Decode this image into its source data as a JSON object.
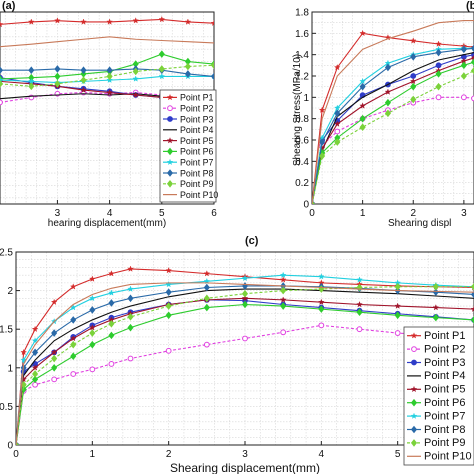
{
  "chart_data": [
    {
      "type": "line",
      "panel_label": "(a)",
      "xlabel": "hearing displacement(mm)",
      "ylabel": "",
      "xlim": [
        1.9,
        6
      ],
      "ylim": [
        0.55,
        2.1
      ],
      "x_ticks": [
        3,
        4,
        5,
        6
      ],
      "grid": true,
      "legend_position": "bottom-right",
      "series": [
        {
          "name": "Point P1",
          "color": "#d42b2b",
          "marker": "star",
          "x": [
            1.9,
            2.5,
            3,
            3.5,
            4,
            4.5,
            5,
            5.5,
            6
          ],
          "y": [
            2.0,
            2.02,
            2.03,
            2.02,
            2.02,
            2.03,
            2.04,
            2.02,
            2.01
          ]
        },
        {
          "name": "Point P2",
          "color": "#e040e0",
          "marker": "circle-open",
          "x": [
            1.9,
            2.5,
            3,
            3.5,
            4,
            4.5,
            5,
            5.5,
            6
          ],
          "y": [
            1.37,
            1.41,
            1.44,
            1.45,
            1.44,
            1.45,
            1.43,
            1.42,
            1.4
          ]
        },
        {
          "name": "Point P3",
          "color": "#2f3cc8",
          "marker": "circle",
          "x": [
            1.9,
            2.5,
            3,
            3.5,
            4,
            4.5,
            5,
            5.5,
            6
          ],
          "y": [
            1.57,
            1.53,
            1.5,
            1.48,
            1.46,
            1.43,
            1.41,
            1.38,
            1.35
          ]
        },
        {
          "name": "Point P4",
          "color": "#111111",
          "marker": "none",
          "x": [
            1.9,
            2.5,
            3,
            3.5,
            4,
            4.5,
            5,
            5.5,
            6
          ],
          "y": [
            1.4,
            1.42,
            1.43,
            1.44,
            1.43,
            1.44,
            1.42,
            1.4,
            1.38
          ]
        },
        {
          "name": "Point P5",
          "color": "#a0132a",
          "marker": "star",
          "x": [
            1.9,
            2.5,
            3,
            3.5,
            4,
            4.5,
            5,
            5.5,
            6
          ],
          "y": [
            1.54,
            1.52,
            1.5,
            1.47,
            1.45,
            1.43,
            1.41,
            1.4,
            1.38
          ]
        },
        {
          "name": "Point P6",
          "color": "#2ecc2e",
          "marker": "diamond",
          "x": [
            1.9,
            2.5,
            3,
            3.5,
            4,
            4.5,
            5,
            5.5,
            6
          ],
          "y": [
            1.56,
            1.57,
            1.58,
            1.6,
            1.62,
            1.68,
            1.76,
            1.7,
            1.68
          ]
        },
        {
          "name": "Point P7",
          "color": "#22d0e0",
          "marker": "star",
          "x": [
            1.9,
            2.5,
            3,
            3.5,
            4,
            4.5,
            5,
            5.5,
            6
          ],
          "y": [
            1.55,
            1.54,
            1.53,
            1.54,
            1.55,
            1.56,
            1.58,
            1.58,
            1.58
          ]
        },
        {
          "name": "Point P8",
          "color": "#2a6aa8",
          "marker": "diamond",
          "x": [
            1.9,
            2.5,
            3,
            3.5,
            4,
            4.5,
            5,
            5.5,
            6
          ],
          "y": [
            1.63,
            1.63,
            1.64,
            1.63,
            1.63,
            1.64,
            1.63,
            1.6,
            1.58
          ]
        },
        {
          "name": "Point P9",
          "color": "#7bd23a",
          "marker": "diamond",
          "x": [
            1.9,
            2.5,
            3,
            3.5,
            4,
            4.5,
            5,
            5.5,
            6
          ],
          "y": [
            1.52,
            1.5,
            1.52,
            1.55,
            1.58,
            1.62,
            1.64,
            1.66,
            1.67
          ]
        },
        {
          "name": "Point P10",
          "color": "#c87a5a",
          "marker": "none",
          "x": [
            1.9,
            2.5,
            3,
            3.5,
            4,
            4.5,
            5,
            5.5,
            6
          ],
          "y": [
            1.82,
            1.84,
            1.86,
            1.88,
            1.9,
            1.88,
            1.87,
            1.86,
            1.85
          ]
        }
      ]
    },
    {
      "type": "line",
      "panel_label": "(b)",
      "xlabel": "Shearing displ",
      "ylabel": "Shearing Stress(MPa/10)",
      "xlim": [
        0,
        3.2
      ],
      "ylim": [
        0,
        1.8
      ],
      "x_ticks": [
        0,
        1,
        2,
        3
      ],
      "y_ticks": [
        0,
        0.2,
        0.4,
        0.6,
        0.8,
        1,
        1.2,
        1.4,
        1.6,
        1.8
      ],
      "grid": true,
      "series": [
        {
          "name": "Point P1",
          "color": "#d42b2b",
          "marker": "star",
          "x": [
            0,
            0.2,
            0.5,
            1,
            1.5,
            2,
            2.5,
            3,
            3.2
          ],
          "y": [
            0,
            0.88,
            1.28,
            1.6,
            1.56,
            1.53,
            1.5,
            1.48,
            1.47
          ]
        },
        {
          "name": "Point P2",
          "color": "#e040e0",
          "marker": "circle-open",
          "x": [
            0,
            0.2,
            0.5,
            1,
            1.5,
            2,
            2.5,
            3,
            3.2
          ],
          "y": [
            0,
            0.55,
            0.68,
            0.8,
            0.88,
            0.95,
            1.0,
            1.0,
            0.99
          ]
        },
        {
          "name": "Point P3",
          "color": "#2f3cc8",
          "marker": "circle",
          "x": [
            0,
            0.2,
            0.5,
            1,
            1.5,
            2,
            2.5,
            3,
            3.2
          ],
          "y": [
            0,
            0.6,
            0.78,
            1.02,
            1.12,
            1.2,
            1.3,
            1.38,
            1.4
          ]
        },
        {
          "name": "Point P4",
          "color": "#111111",
          "marker": "none",
          "x": [
            0,
            0.2,
            0.5,
            1,
            1.5,
            2,
            2.5,
            3,
            3.2
          ],
          "y": [
            0,
            0.5,
            0.82,
            1.0,
            1.12,
            1.25,
            1.35,
            1.4,
            1.42
          ]
        },
        {
          "name": "Point P5",
          "color": "#a0132a",
          "marker": "star",
          "x": [
            0,
            0.2,
            0.5,
            1,
            1.5,
            2,
            2.5,
            3,
            3.2
          ],
          "y": [
            0,
            0.52,
            0.75,
            0.92,
            1.05,
            1.15,
            1.25,
            1.34,
            1.37
          ]
        },
        {
          "name": "Point P6",
          "color": "#2ecc2e",
          "marker": "diamond",
          "x": [
            0,
            0.2,
            0.5,
            1,
            1.5,
            2,
            2.5,
            3,
            3.2
          ],
          "y": [
            0,
            0.48,
            0.62,
            0.8,
            0.95,
            1.1,
            1.22,
            1.3,
            1.33
          ]
        },
        {
          "name": "Point P7",
          "color": "#22d0e0",
          "marker": "star",
          "x": [
            0,
            0.2,
            0.5,
            1,
            1.5,
            2,
            2.5,
            3,
            3.2
          ],
          "y": [
            0,
            0.62,
            0.9,
            1.15,
            1.32,
            1.4,
            1.45,
            1.46,
            1.46
          ]
        },
        {
          "name": "Point P8",
          "color": "#2a6aa8",
          "marker": "diamond",
          "x": [
            0,
            0.2,
            0.5,
            1,
            1.5,
            2,
            2.5,
            3,
            3.2
          ],
          "y": [
            0,
            0.58,
            0.85,
            1.1,
            1.28,
            1.38,
            1.42,
            1.45,
            1.46
          ]
        },
        {
          "name": "Point P9",
          "color": "#7bd23a",
          "marker": "diamond",
          "x": [
            0,
            0.2,
            0.5,
            1,
            1.5,
            2,
            2.5,
            3,
            3.2
          ],
          "y": [
            0,
            0.45,
            0.58,
            0.72,
            0.85,
            0.98,
            1.1,
            1.2,
            1.25
          ]
        },
        {
          "name": "Point P10",
          "color": "#c87a5a",
          "marker": "none",
          "x": [
            0,
            0.2,
            0.5,
            1,
            1.5,
            2,
            2.5,
            3,
            3.2
          ],
          "y": [
            0,
            0.8,
            1.2,
            1.45,
            1.55,
            1.62,
            1.7,
            1.72,
            1.72
          ]
        }
      ]
    },
    {
      "type": "line",
      "panel_label": "(c)",
      "xlabel": "Shearing displacement(mm)",
      "ylabel": "",
      "xlim": [
        0,
        6
      ],
      "ylim": [
        0,
        2.5
      ],
      "x_ticks": [
        0,
        1,
        2,
        3,
        4,
        5
      ],
      "y_ticks": [
        0,
        0.5,
        1,
        1.5,
        2,
        2.5
      ],
      "grid": true,
      "legend_position": "bottom-right",
      "series": [
        {
          "name": "Point P1",
          "color": "#d42b2b",
          "marker": "star",
          "x": [
            0,
            0.1,
            0.25,
            0.5,
            0.75,
            1,
            1.25,
            1.5,
            2,
            2.5,
            3,
            3.5,
            4,
            4.5,
            5,
            5.5,
            6
          ],
          "y": [
            0,
            1.2,
            1.5,
            1.85,
            2.05,
            2.15,
            2.22,
            2.28,
            2.26,
            2.22,
            2.18,
            2.14,
            2.1,
            2.08,
            2.06,
            2.05,
            2.04
          ]
        },
        {
          "name": "Point P2",
          "color": "#e040e0",
          "marker": "circle-open",
          "x": [
            0,
            0.1,
            0.25,
            0.5,
            0.75,
            1,
            1.25,
            1.5,
            2,
            2.5,
            3,
            3.5,
            4,
            4.5,
            5,
            5.5,
            6
          ],
          "y": [
            0,
            0.7,
            0.78,
            0.85,
            0.92,
            0.98,
            1.05,
            1.12,
            1.22,
            1.3,
            1.38,
            1.46,
            1.55,
            1.5,
            1.45,
            1.42,
            1.4
          ]
        },
        {
          "name": "Point P3",
          "color": "#2f3cc8",
          "marker": "circle",
          "x": [
            0,
            0.1,
            0.25,
            0.5,
            0.75,
            1,
            1.25,
            1.5,
            2,
            2.5,
            3,
            3.5,
            4,
            4.5,
            5,
            5.5,
            6
          ],
          "y": [
            0,
            0.95,
            1.05,
            1.2,
            1.4,
            1.55,
            1.65,
            1.72,
            1.82,
            1.88,
            1.87,
            1.82,
            1.78,
            1.74,
            1.7,
            1.66,
            1.62
          ]
        },
        {
          "name": "Point P4",
          "color": "#111111",
          "marker": "none",
          "x": [
            0,
            0.1,
            0.25,
            0.5,
            0.75,
            1,
            1.25,
            1.5,
            2,
            2.5,
            3,
            3.5,
            4,
            4.5,
            5,
            5.5,
            6
          ],
          "y": [
            0,
            0.9,
            1.1,
            1.35,
            1.5,
            1.62,
            1.72,
            1.8,
            1.92,
            2.0,
            2.02,
            2.02,
            2.0,
            1.98,
            1.96,
            1.93,
            1.9
          ]
        },
        {
          "name": "Point P5",
          "color": "#a0132a",
          "marker": "star",
          "x": [
            0,
            0.1,
            0.25,
            0.5,
            0.75,
            1,
            1.25,
            1.5,
            2,
            2.5,
            3,
            3.5,
            4,
            4.5,
            5,
            5.5,
            6
          ],
          "y": [
            0,
            0.85,
            1.0,
            1.2,
            1.38,
            1.52,
            1.62,
            1.7,
            1.82,
            1.88,
            1.9,
            1.88,
            1.85,
            1.82,
            1.8,
            1.78,
            1.76
          ]
        },
        {
          "name": "Point P6",
          "color": "#2ecc2e",
          "marker": "diamond",
          "x": [
            0,
            0.1,
            0.25,
            0.5,
            0.75,
            1,
            1.25,
            1.5,
            2,
            2.5,
            3,
            3.5,
            4,
            4.5,
            5,
            5.5,
            6
          ],
          "y": [
            0,
            0.72,
            0.85,
            1.0,
            1.15,
            1.3,
            1.42,
            1.52,
            1.68,
            1.78,
            1.82,
            1.8,
            1.76,
            1.72,
            1.68,
            1.65,
            1.62
          ]
        },
        {
          "name": "Point P7",
          "color": "#22d0e0",
          "marker": "star",
          "x": [
            0,
            0.1,
            0.25,
            0.5,
            0.75,
            1,
            1.25,
            1.5,
            2,
            2.5,
            3,
            3.5,
            4,
            4.5,
            5,
            5.5,
            6
          ],
          "y": [
            0,
            1.1,
            1.35,
            1.6,
            1.78,
            1.9,
            1.97,
            2.02,
            2.08,
            2.12,
            2.16,
            2.2,
            2.18,
            2.14,
            2.1,
            2.07,
            2.05
          ]
        },
        {
          "name": "Point P8",
          "color": "#2a6aa8",
          "marker": "diamond",
          "x": [
            0,
            0.1,
            0.25,
            0.5,
            0.75,
            1,
            1.25,
            1.5,
            2,
            2.5,
            3,
            3.5,
            4,
            4.5,
            5,
            5.5,
            6
          ],
          "y": [
            0,
            1.0,
            1.2,
            1.45,
            1.62,
            1.75,
            1.84,
            1.9,
            1.98,
            2.04,
            2.06,
            2.06,
            2.05,
            2.03,
            2.0,
            1.98,
            1.95
          ]
        },
        {
          "name": "Point P9",
          "color": "#7bd23a",
          "marker": "diamond",
          "x": [
            0,
            0.1,
            0.25,
            0.5,
            0.75,
            1,
            1.25,
            1.5,
            2,
            2.5,
            3,
            3.5,
            4,
            4.5,
            5,
            5.5,
            6
          ],
          "y": [
            0,
            0.78,
            0.92,
            1.12,
            1.3,
            1.45,
            1.57,
            1.66,
            1.8,
            1.9,
            1.96,
            2.0,
            2.02,
            2.04,
            2.05,
            2.05,
            2.05
          ]
        },
        {
          "name": "Point P10",
          "color": "#c87a5a",
          "marker": "none",
          "x": [
            0,
            0.1,
            0.25,
            0.5,
            0.75,
            1,
            1.25,
            1.5,
            2,
            2.5,
            3,
            3.5,
            4,
            4.5,
            5,
            5.5,
            6
          ],
          "y": [
            0,
            1.05,
            1.3,
            1.6,
            1.82,
            1.95,
            2.03,
            2.08,
            2.1,
            2.1,
            2.08,
            2.06,
            2.04,
            2.02,
            2.0,
            1.99,
            1.98
          ]
        }
      ]
    }
  ]
}
